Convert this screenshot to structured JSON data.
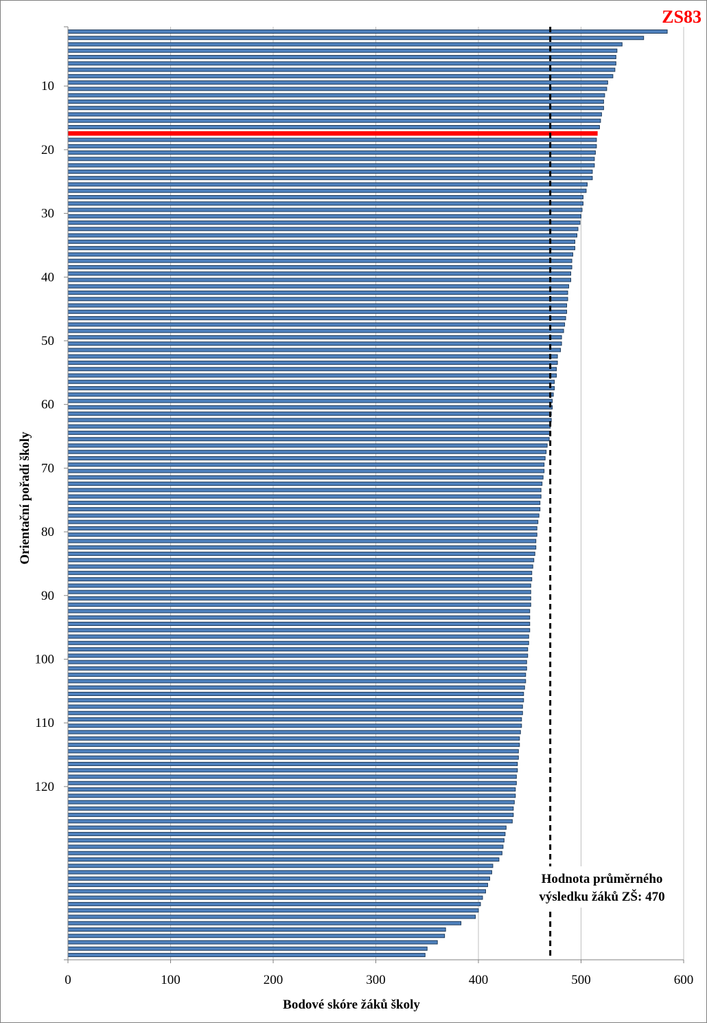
{
  "chart_data": {
    "type": "bar",
    "orientation": "horizontal",
    "school_code": "ZS83",
    "xlabel": "Bodové skóre žáků školy",
    "ylabel": "Orientační pořadí školy",
    "xlim": [
      0,
      600
    ],
    "x_ticks": [
      0,
      100,
      200,
      300,
      400,
      500,
      600
    ],
    "y_ticks": [
      10,
      20,
      30,
      40,
      50,
      60,
      70,
      80,
      90,
      100,
      110,
      120
    ],
    "grid": "vertical",
    "reference_line": {
      "value": 470,
      "label_lines": [
        "Hodnota průměrného",
        "výsledku žáků ZŠ: 470"
      ]
    },
    "highlight_rank": 17,
    "values": [
      584,
      561,
      540,
      535,
      534,
      534,
      533,
      531,
      526,
      525,
      523,
      522,
      522,
      520,
      519,
      518,
      516,
      515,
      515,
      514,
      513,
      513,
      511,
      511,
      506,
      505,
      502,
      502,
      501,
      500,
      499,
      497,
      496,
      494,
      494,
      492,
      491,
      491,
      490,
      490,
      488,
      487,
      487,
      486,
      486,
      485,
      484,
      483,
      481,
      481,
      480,
      477,
      477,
      476,
      476,
      474,
      474,
      473,
      472,
      472,
      471,
      471,
      470,
      470,
      469,
      467,
      466,
      465,
      464,
      464,
      463,
      462,
      461,
      461,
      460,
      460,
      459,
      458,
      457,
      457,
      456,
      456,
      455,
      454,
      453,
      452,
      452,
      451,
      451,
      451,
      451,
      450,
      450,
      450,
      450,
      449,
      449,
      448,
      448,
      447,
      447,
      446,
      446,
      445,
      444,
      444,
      443,
      443,
      442,
      442,
      441,
      440,
      440,
      439,
      439,
      438,
      438,
      437,
      437,
      436,
      436,
      435,
      434,
      434,
      433,
      427,
      426,
      425,
      424,
      423,
      420,
      414,
      413,
      411,
      409,
      407,
      404,
      402,
      400,
      397,
      383,
      368,
      367,
      360,
      350,
      348
    ]
  }
}
